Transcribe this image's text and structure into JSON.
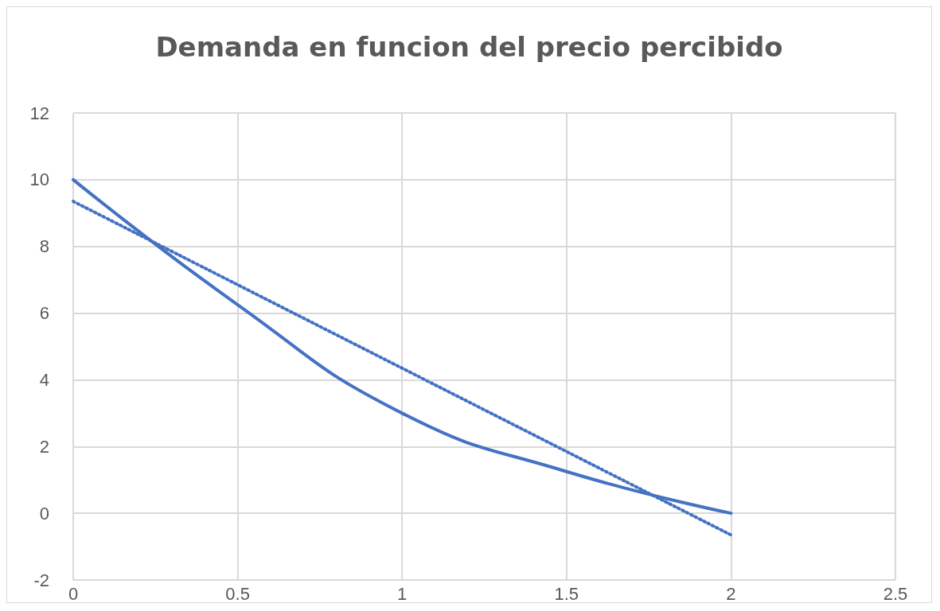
{
  "chart_data": {
    "type": "line",
    "title": "Demanda en funcion del precio percibido",
    "xlim": [
      0,
      2.5
    ],
    "xticks": [
      0,
      0.5,
      1,
      1.5,
      2,
      2.5
    ],
    "ylim": [
      -2,
      12
    ],
    "yticks": [
      -2,
      0,
      2,
      4,
      6,
      8,
      10,
      12
    ],
    "grid": true,
    "marker": "none",
    "series": [
      {
        "color": "#4472c4",
        "line_style": "solid",
        "x": [
          0,
          0.5,
          1,
          1.5,
          2
        ],
        "values": [
          10,
          6.25,
          3,
          1.25,
          0
        ]
      },
      {
        "color": "#4472c4",
        "line_style": "dotted",
        "x": [
          0,
          2
        ],
        "values": [
          9.35,
          -0.65
        ]
      }
    ]
  }
}
